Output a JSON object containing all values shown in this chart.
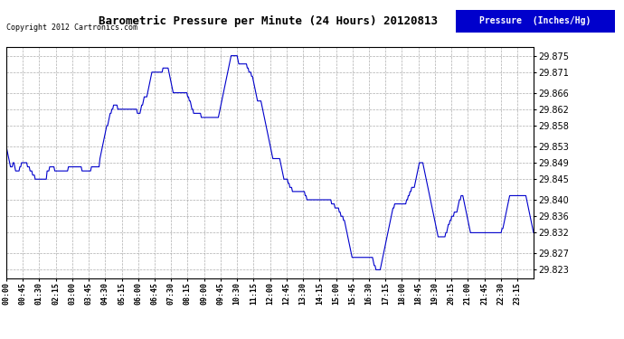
{
  "title": "Barometric Pressure per Minute (24 Hours) 20120813",
  "copyright": "Copyright 2012 Cartronics.com",
  "legend_label": "Pressure  (Inches/Hg)",
  "line_color": "#0000cc",
  "bg_color": "#ffffff",
  "grid_color": "#999999",
  "legend_bg": "#0000cc",
  "legend_fg": "#ffffff",
  "yticks": [
    29.823,
    29.827,
    29.832,
    29.836,
    29.84,
    29.845,
    29.849,
    29.853,
    29.858,
    29.862,
    29.866,
    29.871,
    29.875
  ],
  "xtick_labels": [
    "00:00",
    "00:45",
    "01:30",
    "02:15",
    "03:00",
    "03:45",
    "04:30",
    "05:15",
    "06:00",
    "06:45",
    "07:30",
    "08:15",
    "09:00",
    "09:45",
    "10:30",
    "11:15",
    "12:00",
    "12:45",
    "13:30",
    "14:15",
    "15:00",
    "15:45",
    "16:30",
    "17:15",
    "18:00",
    "18:45",
    "19:30",
    "20:15",
    "21:00",
    "21:45",
    "22:30",
    "23:15"
  ],
  "ylim": [
    29.821,
    29.877
  ],
  "xlim": [
    0,
    1439
  ],
  "pressure_data": [
    29.853,
    29.852,
    29.851,
    29.85,
    29.849,
    29.848,
    29.848,
    29.848,
    29.849,
    29.849,
    29.848,
    29.847,
    29.847,
    29.847,
    29.847,
    29.847,
    29.848,
    29.848,
    29.849,
    29.849,
    29.849,
    29.849,
    29.849,
    29.849,
    29.849,
    29.848,
    29.848,
    29.848,
    29.847,
    29.847,
    29.847,
    29.846,
    29.846,
    29.846,
    29.845,
    29.845,
    29.845,
    29.845,
    29.845,
    29.845,
    29.845,
    29.845,
    29.845,
    29.845,
    29.845,
    29.845,
    29.845,
    29.845,
    29.847,
    29.847,
    29.847,
    29.848,
    29.848,
    29.848,
    29.848,
    29.848,
    29.848,
    29.847,
    29.847,
    29.847,
    29.847,
    29.847,
    29.847,
    29.847,
    29.847,
    29.847,
    29.847,
    29.847,
    29.847,
    29.847,
    29.847,
    29.847,
    29.847,
    29.848,
    29.848,
    29.848,
    29.848,
    29.848,
    29.848,
    29.848,
    29.848,
    29.848,
    29.848,
    29.848,
    29.848,
    29.848,
    29.848,
    29.848,
    29.848,
    29.847,
    29.847,
    29.847,
    29.847,
    29.847,
    29.847,
    29.847,
    29.847,
    29.847,
    29.847,
    29.847,
    29.848,
    29.848,
    29.848,
    29.848,
    29.848,
    29.848,
    29.848,
    29.848,
    29.848,
    29.848,
    29.85,
    29.851,
    29.852,
    29.853,
    29.854,
    29.855,
    29.856,
    29.857,
    29.858,
    29.858,
    29.859,
    29.86,
    29.861,
    29.861,
    29.862,
    29.862,
    29.863,
    29.863,
    29.863,
    29.863,
    29.863,
    29.862,
    29.862,
    29.862,
    29.862,
    29.862,
    29.862,
    29.862,
    29.862,
    29.862,
    29.862,
    29.862,
    29.862,
    29.862,
    29.862,
    29.862,
    29.862,
    29.862,
    29.862,
    29.862,
    29.862,
    29.862,
    29.862,
    29.862,
    29.861,
    29.861,
    29.861,
    29.861,
    29.862,
    29.863,
    29.863,
    29.864,
    29.865,
    29.865,
    29.865,
    29.865,
    29.866,
    29.867,
    29.868,
    29.869,
    29.87,
    29.871,
    29.871,
    29.871,
    29.871,
    29.871,
    29.871,
    29.871,
    29.871,
    29.871,
    29.871,
    29.871,
    29.871,
    29.871,
    29.872,
    29.872,
    29.872,
    29.872,
    29.872,
    29.872,
    29.872,
    29.871,
    29.87,
    29.869,
    29.868,
    29.867,
    29.866,
    29.866,
    29.866,
    29.866,
    29.866,
    29.866,
    29.866,
    29.866,
    29.866,
    29.866,
    29.866,
    29.866,
    29.866,
    29.866,
    29.866,
    29.866,
    29.866,
    29.865,
    29.865,
    29.864,
    29.864,
    29.863,
    29.862,
    29.862,
    29.861,
    29.861,
    29.861,
    29.861,
    29.861,
    29.861,
    29.861,
    29.861,
    29.861,
    29.86,
    29.86,
    29.86,
    29.86,
    29.86,
    29.86,
    29.86,
    29.86,
    29.86,
    29.86,
    29.86,
    29.86,
    29.86,
    29.86,
    29.86,
    29.86,
    29.86,
    29.86,
    29.86,
    29.86,
    29.86,
    29.861,
    29.862,
    29.863,
    29.864,
    29.865,
    29.866,
    29.867,
    29.868,
    29.869,
    29.87,
    29.871,
    29.872,
    29.873,
    29.874,
    29.875,
    29.875,
    29.875,
    29.875,
    29.875,
    29.875,
    29.875,
    29.875,
    29.874,
    29.873,
    29.873,
    29.873,
    29.873,
    29.873,
    29.873,
    29.873,
    29.873,
    29.873,
    29.873,
    29.872,
    29.872,
    29.871,
    29.871,
    29.871,
    29.87,
    29.87,
    29.869,
    29.868,
    29.867,
    29.866,
    29.865,
    29.864,
    29.864,
    29.864,
    29.864,
    29.864,
    29.863,
    29.862,
    29.861,
    29.86,
    29.859,
    29.858,
    29.857,
    29.856,
    29.855,
    29.854,
    29.853,
    29.852,
    29.851,
    29.85,
    29.85,
    29.85,
    29.85,
    29.85,
    29.85,
    29.85,
    29.85,
    29.85,
    29.849,
    29.848,
    29.847,
    29.846,
    29.845,
    29.845,
    29.845,
    29.845,
    29.845,
    29.844,
    29.844,
    29.843,
    29.843,
    29.843,
    29.842,
    29.842,
    29.842,
    29.842,
    29.842,
    29.842,
    29.842,
    29.842,
    29.842,
    29.842,
    29.842,
    29.842,
    29.842,
    29.842,
    29.842,
    29.841,
    29.841,
    29.84,
    29.84,
    29.84,
    29.84,
    29.84,
    29.84,
    29.84,
    29.84,
    29.84,
    29.84,
    29.84,
    29.84,
    29.84,
    29.84,
    29.84,
    29.84,
    29.84,
    29.84,
    29.84,
    29.84,
    29.84,
    29.84,
    29.84,
    29.84,
    29.84,
    29.84,
    29.84,
    29.84,
    29.84,
    29.839,
    29.839,
    29.839,
    29.839,
    29.838,
    29.838,
    29.838,
    29.838,
    29.838,
    29.837,
    29.837,
    29.836,
    29.836,
    29.836,
    29.835,
    29.835,
    29.834,
    29.833,
    29.832,
    29.831,
    29.83,
    29.829,
    29.828,
    29.827,
    29.826,
    29.826,
    29.826,
    29.826,
    29.826,
    29.826,
    29.826,
    29.826,
    29.826,
    29.826,
    29.826,
    29.826,
    29.826,
    29.826,
    29.826,
    29.826,
    29.826,
    29.826,
    29.826,
    29.826,
    29.826,
    29.826,
    29.826,
    29.826,
    29.826,
    29.825,
    29.824,
    29.824,
    29.823,
    29.823,
    29.823,
    29.823,
    29.823,
    29.823,
    29.824,
    29.825,
    29.826,
    29.827,
    29.828,
    29.829,
    29.83,
    29.831,
    29.832,
    29.833,
    29.834,
    29.835,
    29.836,
    29.837,
    29.838,
    29.838,
    29.839,
    29.839,
    29.839,
    29.839,
    29.839,
    29.839,
    29.839,
    29.839,
    29.839,
    29.839,
    29.839,
    29.839,
    29.839,
    29.839,
    29.84,
    29.84,
    29.841,
    29.841,
    29.842,
    29.842,
    29.843,
    29.843,
    29.843,
    29.843,
    29.844,
    29.845,
    29.846,
    29.847,
    29.848,
    29.849,
    29.849,
    29.849,
    29.849,
    29.849,
    29.848,
    29.847,
    29.846,
    29.845,
    29.844,
    29.843,
    29.842,
    29.841,
    29.84,
    29.839,
    29.838,
    29.837,
    29.836,
    29.835,
    29.834,
    29.833,
    29.832,
    29.831,
    29.831,
    29.831,
    29.831,
    29.831,
    29.831,
    29.831,
    29.831,
    29.831,
    29.832,
    29.832,
    29.833,
    29.834,
    29.834,
    29.835,
    29.835,
    29.836,
    29.836,
    29.836,
    29.837,
    29.837,
    29.837,
    29.837,
    29.838,
    29.839,
    29.84,
    29.84,
    29.841,
    29.841,
    29.841,
    29.84,
    29.839,
    29.838,
    29.837,
    29.836,
    29.835,
    29.834,
    29.833,
    29.832,
    29.832,
    29.832,
    29.832,
    29.832,
    29.832,
    29.832,
    29.832,
    29.832,
    29.832,
    29.832,
    29.832,
    29.832,
    29.832,
    29.832,
    29.832,
    29.832,
    29.832,
    29.832,
    29.832,
    29.832,
    29.832,
    29.832,
    29.832,
    29.832,
    29.832,
    29.832,
    29.832,
    29.832,
    29.832,
    29.832,
    29.832,
    29.832,
    29.832,
    29.832,
    29.832,
    29.832,
    29.833,
    29.833,
    29.834,
    29.835,
    29.836,
    29.837,
    29.838,
    29.839,
    29.84,
    29.841,
    29.841,
    29.841,
    29.841,
    29.841,
    29.841,
    29.841,
    29.841,
    29.841,
    29.841,
    29.841,
    29.841,
    29.841,
    29.841,
    29.841,
    29.841,
    29.841,
    29.841,
    29.841,
    29.841,
    29.84,
    29.839,
    29.838,
    29.837,
    29.836,
    29.835,
    29.834,
    29.833,
    29.832
  ]
}
